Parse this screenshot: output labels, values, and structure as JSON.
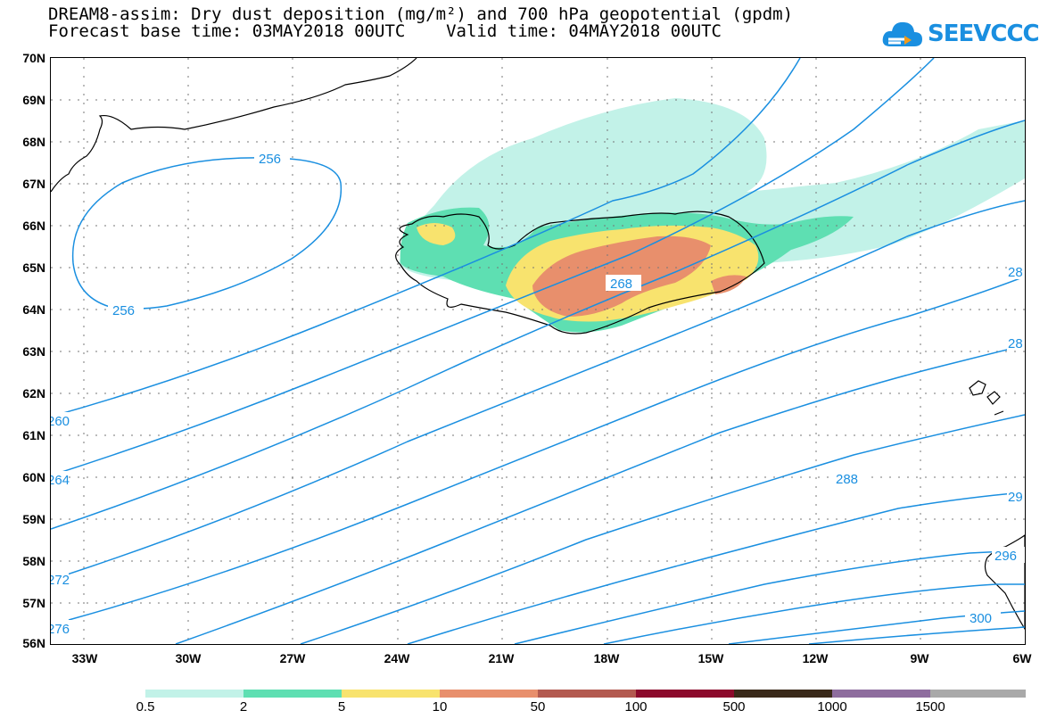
{
  "header": {
    "line1": "DREAM8-assim: Dry dust deposition (mg/m²) and 700 hPa geopotential (gpdm)",
    "line2": "Forecast base time: 03MAY2018 00UTC    Valid time: 04MAY2018 00UTC"
  },
  "logo": {
    "text": "SEEVCCC",
    "icon": "cloud-icon",
    "color": "#1a8fe0"
  },
  "map": {
    "lat_labels": [
      "70N",
      "69N",
      "68N",
      "67N",
      "66N",
      "65N",
      "64N",
      "63N",
      "62N",
      "61N",
      "60N",
      "59N",
      "58N",
      "57N",
      "56N"
    ],
    "lon_labels": [
      "33W",
      "30W",
      "27W",
      "24W",
      "21W",
      "18W",
      "15W",
      "12W",
      "9W",
      "6W"
    ],
    "contour_labels": [
      "256",
      "256",
      "268",
      "288",
      "300",
      "260",
      "264",
      "272",
      "276",
      "28",
      "28",
      "29",
      "296"
    ],
    "contour_color": "#1a8fe0"
  },
  "colorbar": {
    "labels": [
      "0.5",
      "2",
      "5",
      "10",
      "50",
      "100",
      "500",
      "1000",
      "1500"
    ],
    "colors": [
      "#c2f2e8",
      "#5edfb2",
      "#f8e36e",
      "#e88f6c",
      "#b35a50",
      "#8c0a2c",
      "#3a2a1a",
      "#8e6d9e",
      "#a9a9a9"
    ]
  }
}
